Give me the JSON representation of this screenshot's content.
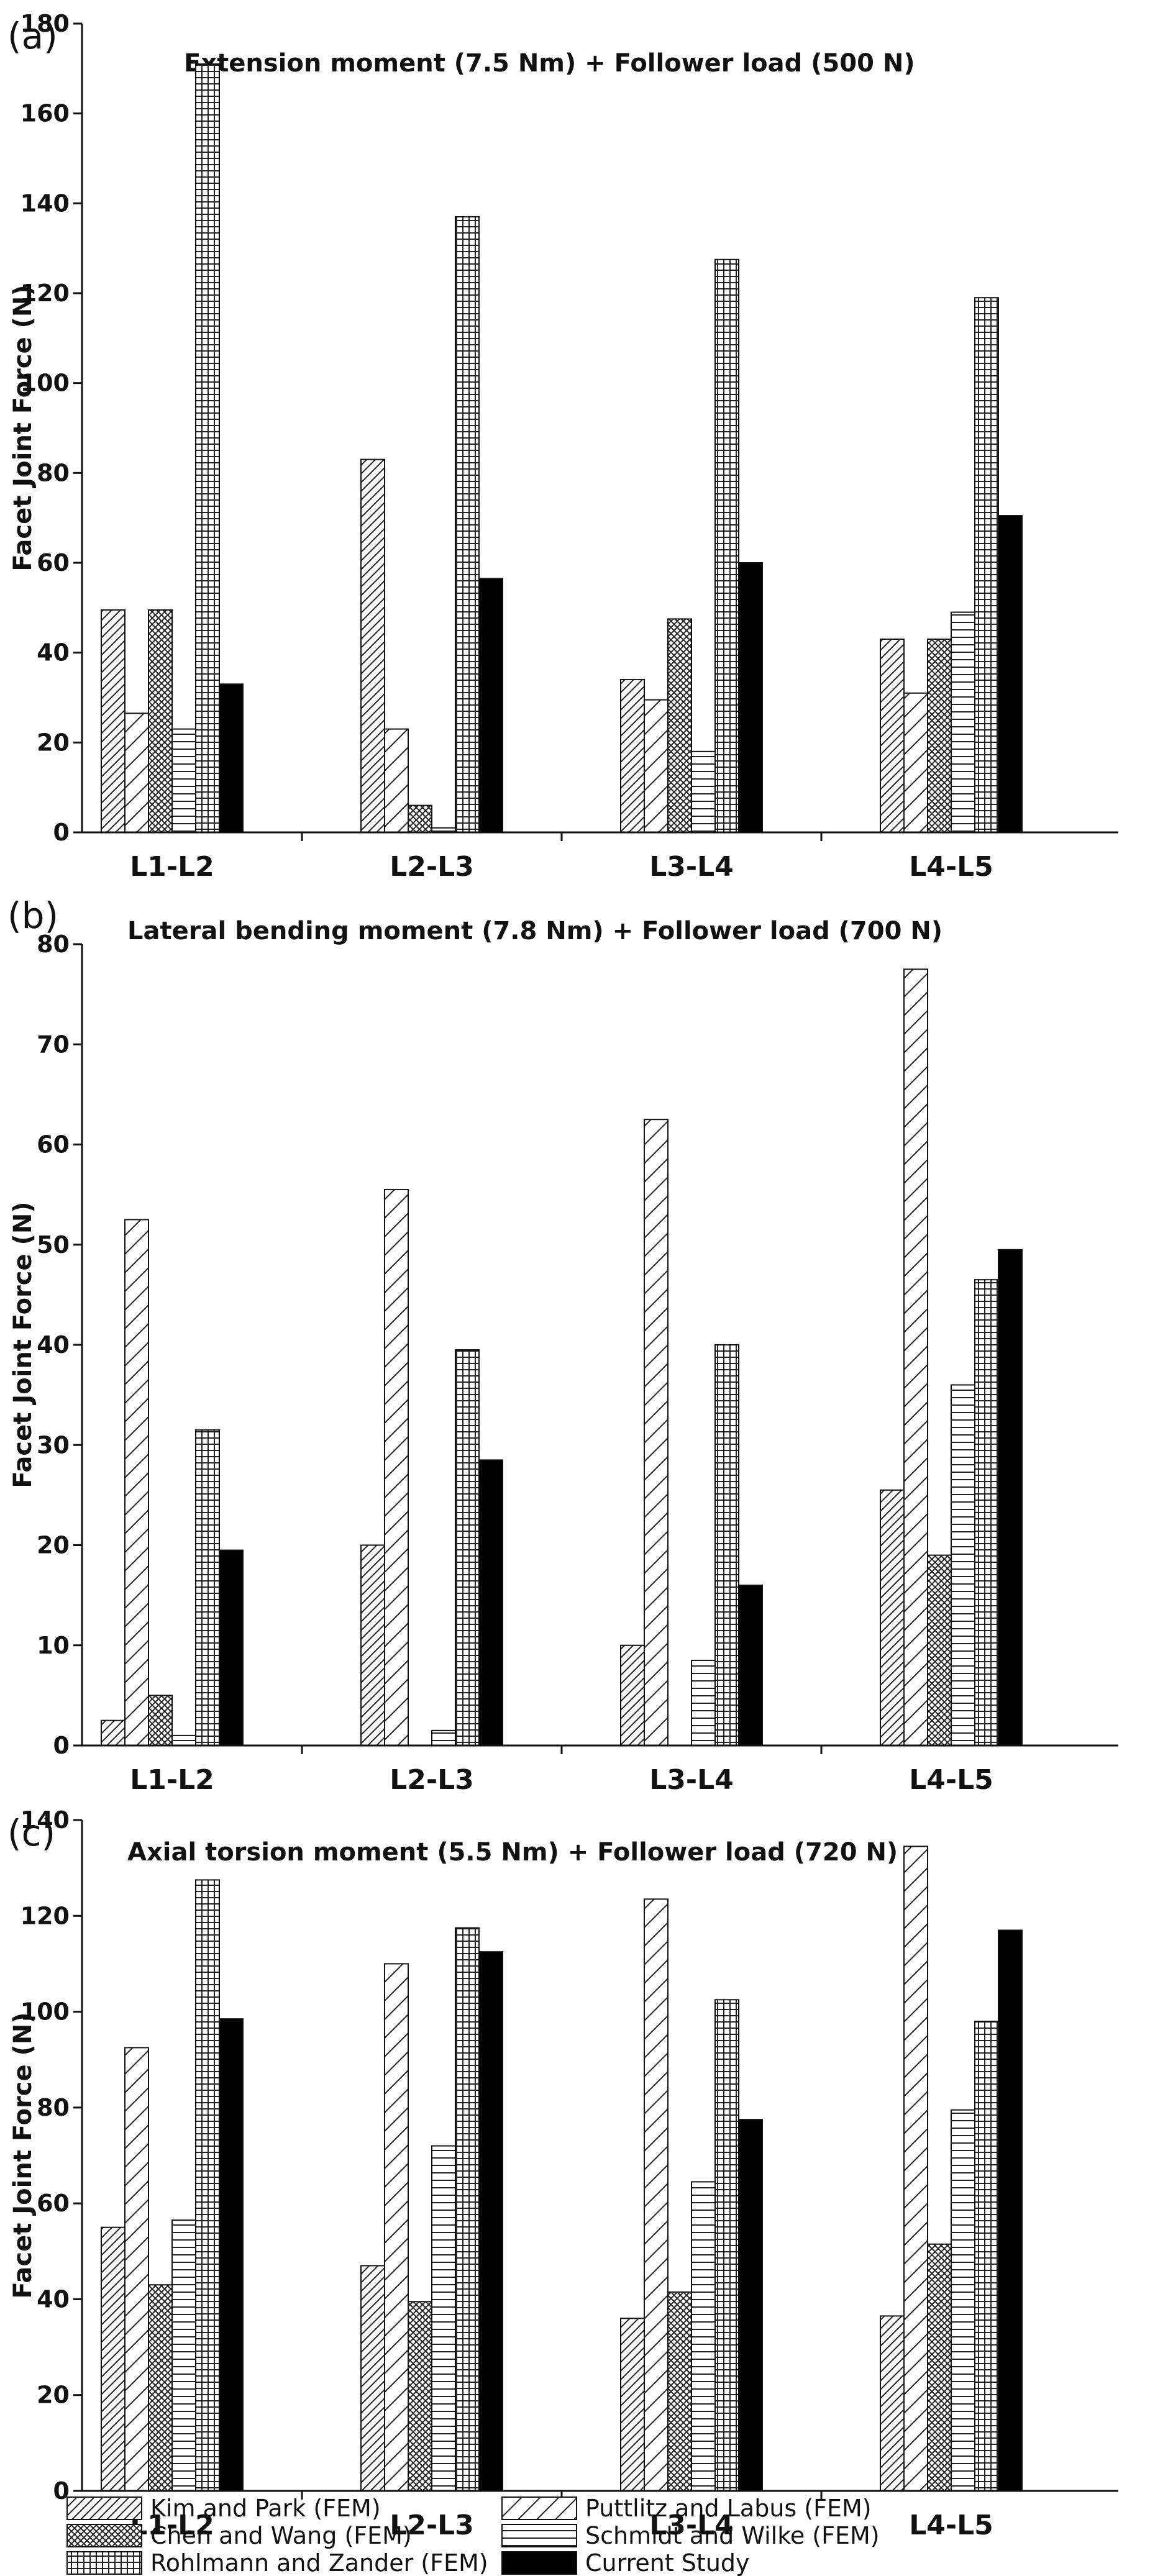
{
  "chart_data": [
    {
      "type": "bar",
      "panel_label": "(a)",
      "title": "Extension moment (7.5 Nm) + Follower load (500 N)",
      "xlabel": "",
      "ylabel": "Facet Joint Force (N)",
      "ylim": [
        0,
        180
      ],
      "yticks": [
        0,
        20,
        40,
        60,
        80,
        100,
        120,
        140,
        160,
        180
      ],
      "grid": false,
      "categories": [
        "L1-L2",
        "L2-L3",
        "L3-L4",
        "L4-L5"
      ],
      "series": [
        {
          "name": "Kim and Park (FEM)",
          "values": [
            49.5,
            83,
            34,
            43
          ]
        },
        {
          "name": "Puttlitz and Labus (FEM)",
          "values": [
            26.5,
            23,
            29.5,
            31
          ]
        },
        {
          "name": "Chen and Wang (FEM)",
          "values": [
            49.5,
            6,
            47.5,
            43
          ]
        },
        {
          "name": "Schmidt and Wilke (FEM)",
          "values": [
            23,
            1,
            18,
            49
          ]
        },
        {
          "name": "Rohlmann and Zander (FEM)",
          "values": [
            171,
            137,
            127.5,
            119
          ]
        },
        {
          "name": "Current Study",
          "values": [
            33,
            56.5,
            60,
            70.5
          ]
        }
      ]
    },
    {
      "type": "bar",
      "panel_label": "(b)",
      "title": "Lateral bending moment (7.8 Nm) + Follower load (700 N)",
      "xlabel": "",
      "ylabel": "Facet Joint Force (N)",
      "ylim": [
        0,
        80
      ],
      "yticks": [
        0,
        10,
        20,
        30,
        40,
        50,
        60,
        70,
        80
      ],
      "grid": false,
      "categories": [
        "L1-L2",
        "L2-L3",
        "L3-L4",
        "L4-L5"
      ],
      "series": [
        {
          "name": "Kim and Park (FEM)",
          "values": [
            2.5,
            20,
            10,
            25.5
          ]
        },
        {
          "name": "Puttlitz and Labus (FEM)",
          "values": [
            52.5,
            55.5,
            62.5,
            77.5
          ]
        },
        {
          "name": "Chen and Wang (FEM)",
          "values": [
            5,
            0,
            0,
            19
          ]
        },
        {
          "name": "Schmidt and Wilke (FEM)",
          "values": [
            1,
            1.5,
            8.5,
            36
          ]
        },
        {
          "name": "Rohlmann and Zander (FEM)",
          "values": [
            31.5,
            39.5,
            40,
            46.5
          ]
        },
        {
          "name": "Current Study",
          "values": [
            19.5,
            28.5,
            16,
            49.5
          ]
        }
      ]
    },
    {
      "type": "bar",
      "panel_label": "(c)",
      "title": "Axial torsion moment (5.5 Nm) + Follower load (720 N)",
      "xlabel": "",
      "ylabel": "Facet Joint Force (N)",
      "ylim": [
        0,
        140
      ],
      "yticks": [
        0,
        20,
        40,
        60,
        80,
        100,
        120,
        140
      ],
      "grid": false,
      "categories": [
        "L1-L2",
        "L2-L3",
        "L3-L4",
        "L4-L5"
      ],
      "series": [
        {
          "name": "Kim and Park (FEM)",
          "values": [
            55,
            47,
            36,
            36.5
          ]
        },
        {
          "name": "Puttlitz and Labus (FEM)",
          "values": [
            92.5,
            110,
            123.5,
            134.5
          ]
        },
        {
          "name": "Chen and Wang (FEM)",
          "values": [
            43,
            39.5,
            41.5,
            51.5
          ]
        },
        {
          "name": "Schmidt and Wilke (FEM)",
          "values": [
            56.5,
            72,
            64.5,
            79.5
          ]
        },
        {
          "name": "Rohlmann and Zander (FEM)",
          "values": [
            127.5,
            117.5,
            102.5,
            98
          ]
        },
        {
          "name": "Current Study",
          "values": [
            98.5,
            112.5,
            77.5,
            117
          ]
        }
      ]
    }
  ],
  "legend": {
    "entries": [
      "Kim and Park (FEM)",
      "Puttlitz and Labus (FEM)",
      "Chen and Wang (FEM)",
      "Schmidt and Wilke (FEM)",
      "Rohlmann and Zander (FEM)",
      "Current Study"
    ]
  }
}
